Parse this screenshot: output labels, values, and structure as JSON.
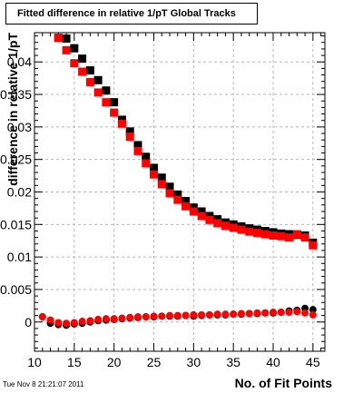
{
  "chart_data": {
    "type": "scatter",
    "title": "Fitted difference in relative 1/pT  Global Tracks",
    "xlabel": "No. of Fit Points",
    "ylabel": "difference in relative 1/pT",
    "xlim": [
      10,
      46.5
    ],
    "ylim": [
      -0.0045,
      0.0445
    ],
    "x_ticks": [
      "10",
      "15",
      "20",
      "25",
      "30",
      "35",
      "40",
      "45"
    ],
    "y_ticks": [
      "0",
      "0.005",
      "0.01",
      "0.015",
      "0.02",
      "0.025",
      "0.03",
      "0.035",
      "0.04"
    ],
    "grid": true,
    "legend": "none",
    "series": [
      {
        "marker": "square",
        "color": "#000000",
        "x": [
          13,
          14,
          15,
          16,
          17,
          18,
          19,
          20,
          21,
          22,
          23,
          24,
          25,
          26,
          27,
          28,
          29,
          30,
          31,
          32,
          33,
          34,
          35,
          36,
          37,
          38,
          39,
          40,
          41,
          42,
          43,
          44,
          45
        ],
        "y": [
          0.0437,
          0.0436,
          0.0421,
          0.0405,
          0.0387,
          0.0372,
          0.0356,
          0.0338,
          0.0311,
          0.0293,
          0.0272,
          0.0254,
          0.0237,
          0.0222,
          0.0208,
          0.0196,
          0.0186,
          0.0176,
          0.017,
          0.0163,
          0.0158,
          0.0153,
          0.015,
          0.0147,
          0.0144,
          0.0142,
          0.014,
          0.0138,
          0.0136,
          0.0135,
          0.0134,
          0.0133,
          0.0122
        ]
      },
      {
        "marker": "square",
        "color": "#ff0000",
        "x": [
          13,
          14,
          15,
          16,
          17,
          18,
          19,
          20,
          21,
          22,
          23,
          24,
          25,
          26,
          27,
          28,
          29,
          30,
          31,
          32,
          33,
          34,
          35,
          36,
          37,
          38,
          39,
          40,
          41,
          42,
          43,
          44,
          45
        ],
        "y": [
          0.0437,
          0.0418,
          0.0398,
          0.0385,
          0.0369,
          0.0353,
          0.0338,
          0.0322,
          0.0305,
          0.0285,
          0.0263,
          0.0244,
          0.0227,
          0.0212,
          0.0198,
          0.0188,
          0.0178,
          0.017,
          0.0163,
          0.0157,
          0.0152,
          0.0148,
          0.0145,
          0.0142,
          0.0139,
          0.0137,
          0.0135,
          0.0133,
          0.0132,
          0.013,
          0.0135,
          0.013,
          0.0118
        ]
      },
      {
        "marker": "circle",
        "color": "#000000",
        "x": [
          11,
          12,
          13,
          14,
          15,
          16,
          17,
          18,
          19,
          20,
          21,
          22,
          23,
          24,
          25,
          26,
          27,
          28,
          29,
          30,
          31,
          32,
          33,
          34,
          35,
          36,
          37,
          38,
          39,
          40,
          41,
          42,
          43,
          44,
          45
        ],
        "y": [
          0.0008,
          -0.0002,
          -0.0004,
          -0.0005,
          -0.0003,
          -0.0002,
          0.0,
          0.0002,
          0.0003,
          0.0004,
          0.0005,
          0.0006,
          0.0007,
          0.0008,
          0.0008,
          0.0009,
          0.0009,
          0.0009,
          0.001,
          0.0009,
          0.001,
          0.0011,
          0.0011,
          0.0011,
          0.0012,
          0.0012,
          0.0013,
          0.0013,
          0.0014,
          0.0014,
          0.0015,
          0.0017,
          0.0018,
          0.0021,
          0.0019
        ]
      },
      {
        "marker": "circle",
        "color": "#ff0000",
        "x": [
          11,
          12,
          13,
          14,
          15,
          16,
          17,
          18,
          19,
          20,
          21,
          22,
          23,
          24,
          25,
          26,
          27,
          28,
          29,
          30,
          31,
          32,
          33,
          34,
          35,
          36,
          37,
          38,
          39,
          40,
          41,
          42,
          43,
          44,
          45
        ],
        "y": [
          0.0008,
          0.0003,
          -0.0001,
          -0.0002,
          -0.0001,
          0.0001,
          0.0002,
          0.0004,
          0.0005,
          0.0005,
          0.0006,
          0.0007,
          0.0008,
          0.0008,
          0.0009,
          0.0009,
          0.001,
          0.001,
          0.001,
          0.0011,
          0.0011,
          0.0011,
          0.0012,
          0.0012,
          0.0012,
          0.0013,
          0.0013,
          0.0014,
          0.0014,
          0.0015,
          0.0015,
          0.0015,
          0.0016,
          0.0014,
          0.0011
        ]
      }
    ]
  },
  "timestamp": "Tue Nov  8 21:21:07 2011"
}
